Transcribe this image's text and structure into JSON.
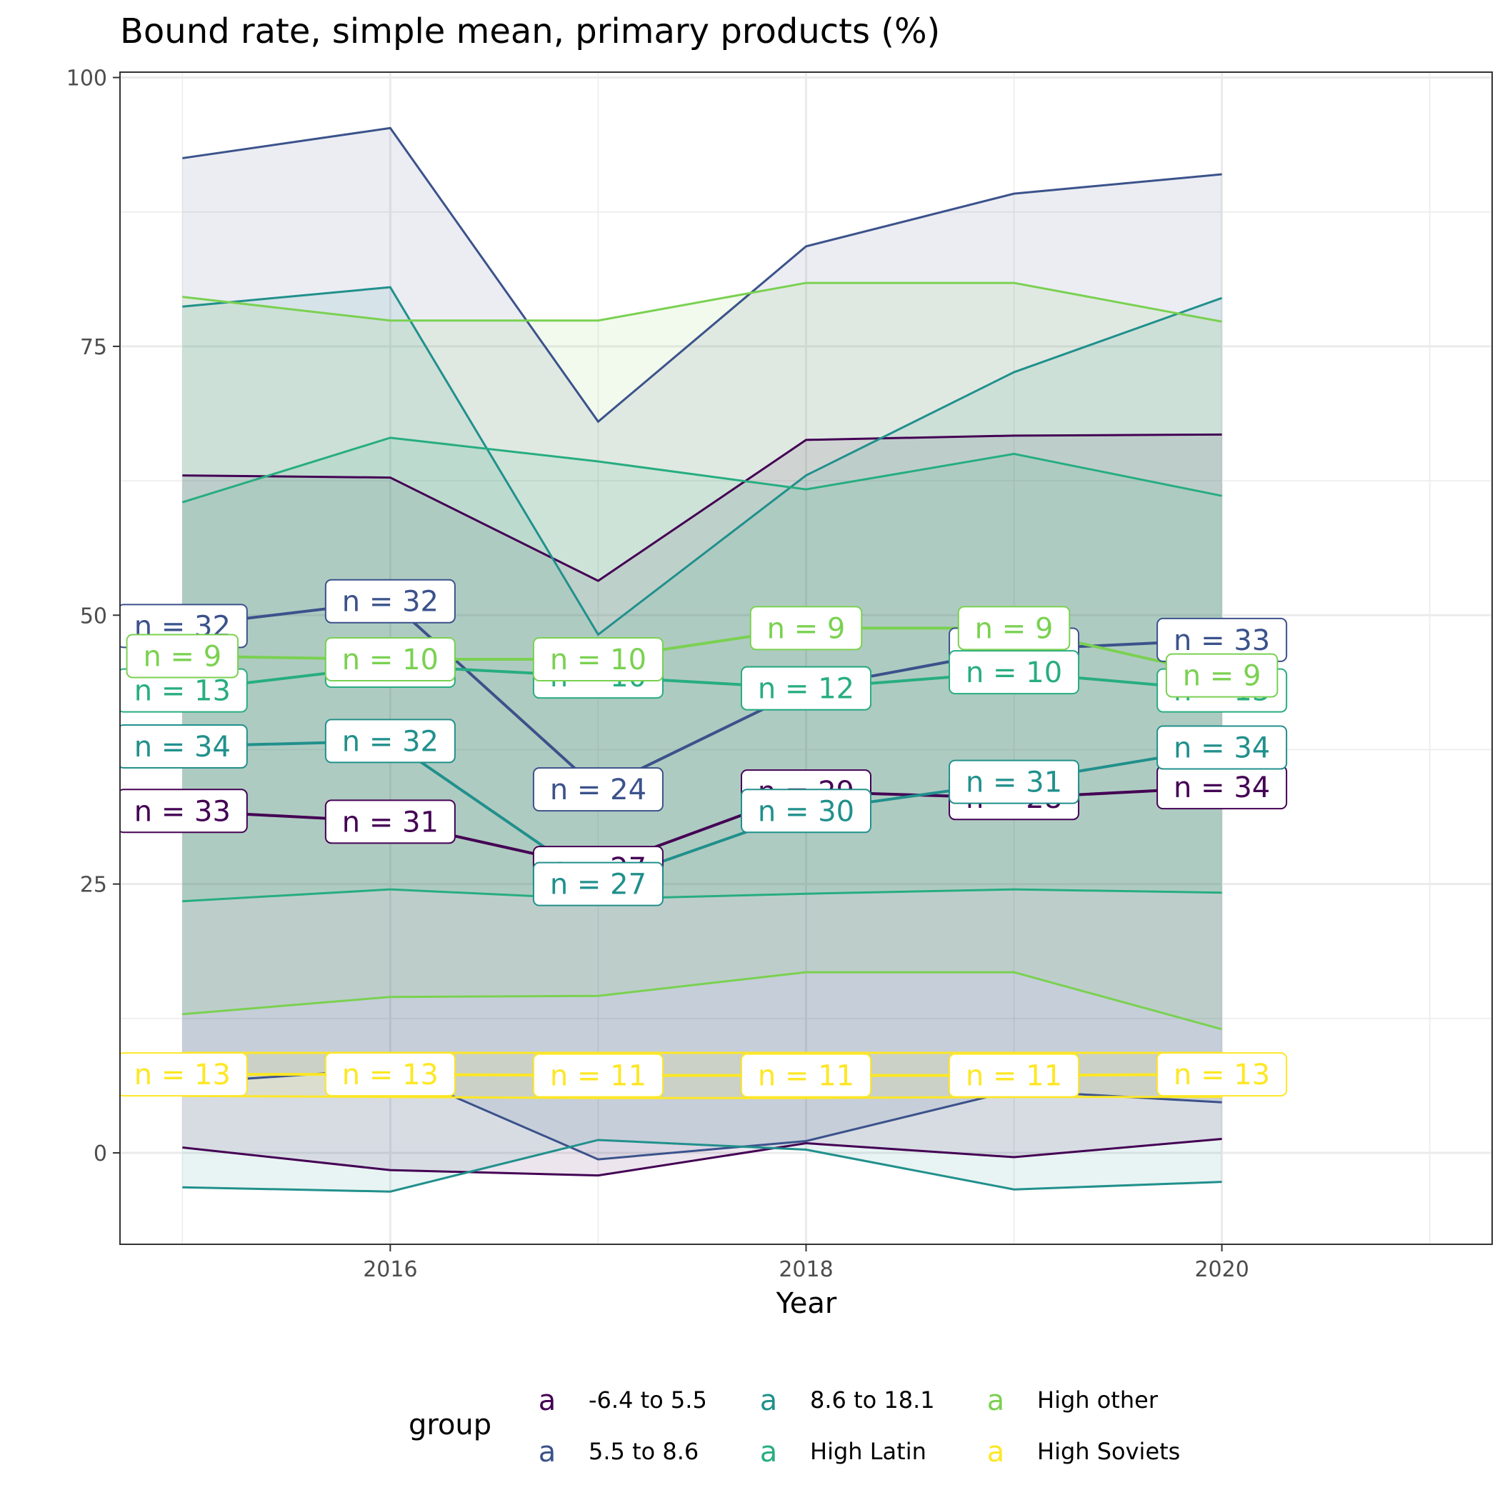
{
  "chart_data": {
    "type": "line",
    "title": "Bound rate, simple mean, primary products (%)",
    "xlabel": "Year",
    "ylabel": "",
    "xlim": [
      2014.7,
      2021.3
    ],
    "ylim": [
      -8.5,
      100.5
    ],
    "x_ticks": [
      2016,
      2018,
      2020
    ],
    "y_ticks": [
      0,
      25,
      50,
      75,
      100
    ],
    "grid": true,
    "legend": {
      "title": "group",
      "position": "bottom",
      "key_glyph": "a"
    },
    "x": [
      2015,
      2016,
      2017,
      2018,
      2019,
      2020
    ],
    "series": [
      {
        "name": "-6.4 to 5.5",
        "color": "#440154",
        "mean": [
          31.8,
          30.8,
          26.5,
          33.6,
          33.0,
          34.0
        ],
        "upper": [
          63.0,
          62.8,
          53.2,
          66.3,
          66.7,
          66.8
        ],
        "lower": [
          0.5,
          -1.6,
          -2.1,
          0.9,
          -0.4,
          1.3
        ],
        "n": [
          33,
          31,
          27,
          29,
          28,
          34
        ]
      },
      {
        "name": "5.5 to 8.6",
        "color": "#3B528B",
        "mean": [
          49.0,
          51.3,
          33.8,
          43.2,
          46.8,
          47.7
        ],
        "upper": [
          92.5,
          95.3,
          68.0,
          84.3,
          89.2,
          91.0
        ],
        "lower": [
          6.5,
          7.8,
          -0.6,
          1.1,
          5.8,
          4.7
        ],
        "n": [
          32,
          32,
          24,
          12,
          30,
          33
        ]
      },
      {
        "name": "8.6 to 18.1",
        "color": "#21908C",
        "mean": [
          37.8,
          38.3,
          25.0,
          31.8,
          34.5,
          37.7
        ],
        "upper": [
          78.7,
          80.5,
          48.2,
          63.0,
          72.6,
          79.5
        ],
        "lower": [
          -3.2,
          -3.6,
          1.2,
          0.3,
          -3.4,
          -2.7
        ],
        "n": [
          34,
          32,
          27,
          30,
          31,
          34
        ]
      },
      {
        "name": "High Latin",
        "color": "#27AD81",
        "mean": [
          43.0,
          45.3,
          44.3,
          43.2,
          44.7,
          43.0
        ],
        "upper": [
          60.5,
          66.5,
          64.3,
          61.7,
          65.0,
          61.1
        ],
        "lower": [
          23.4,
          24.5,
          23.6,
          24.1,
          24.5,
          24.2
        ],
        "n": [
          13,
          10,
          10,
          12,
          10,
          13
        ]
      },
      {
        "name": "High other",
        "color": "#7AD151",
        "mean": [
          46.2,
          45.9,
          45.9,
          48.8,
          48.8,
          44.4
        ],
        "upper": [
          79.6,
          77.4,
          77.4,
          80.9,
          80.9,
          77.3
        ],
        "lower": [
          12.9,
          14.5,
          14.6,
          16.8,
          16.8,
          11.5
        ],
        "n": [
          9,
          10,
          10,
          9,
          9,
          9
        ]
      },
      {
        "name": "High Soviets",
        "color": "#FDE725",
        "mean": [
          7.3,
          7.3,
          7.2,
          7.2,
          7.2,
          7.3
        ],
        "upper": [
          9.3,
          9.3,
          9.3,
          9.3,
          9.3,
          9.3
        ],
        "lower": [
          5.3,
          5.2,
          5.1,
          5.1,
          5.2,
          5.2
        ],
        "n": [
          13,
          13,
          11,
          11,
          11,
          13
        ]
      }
    ]
  }
}
